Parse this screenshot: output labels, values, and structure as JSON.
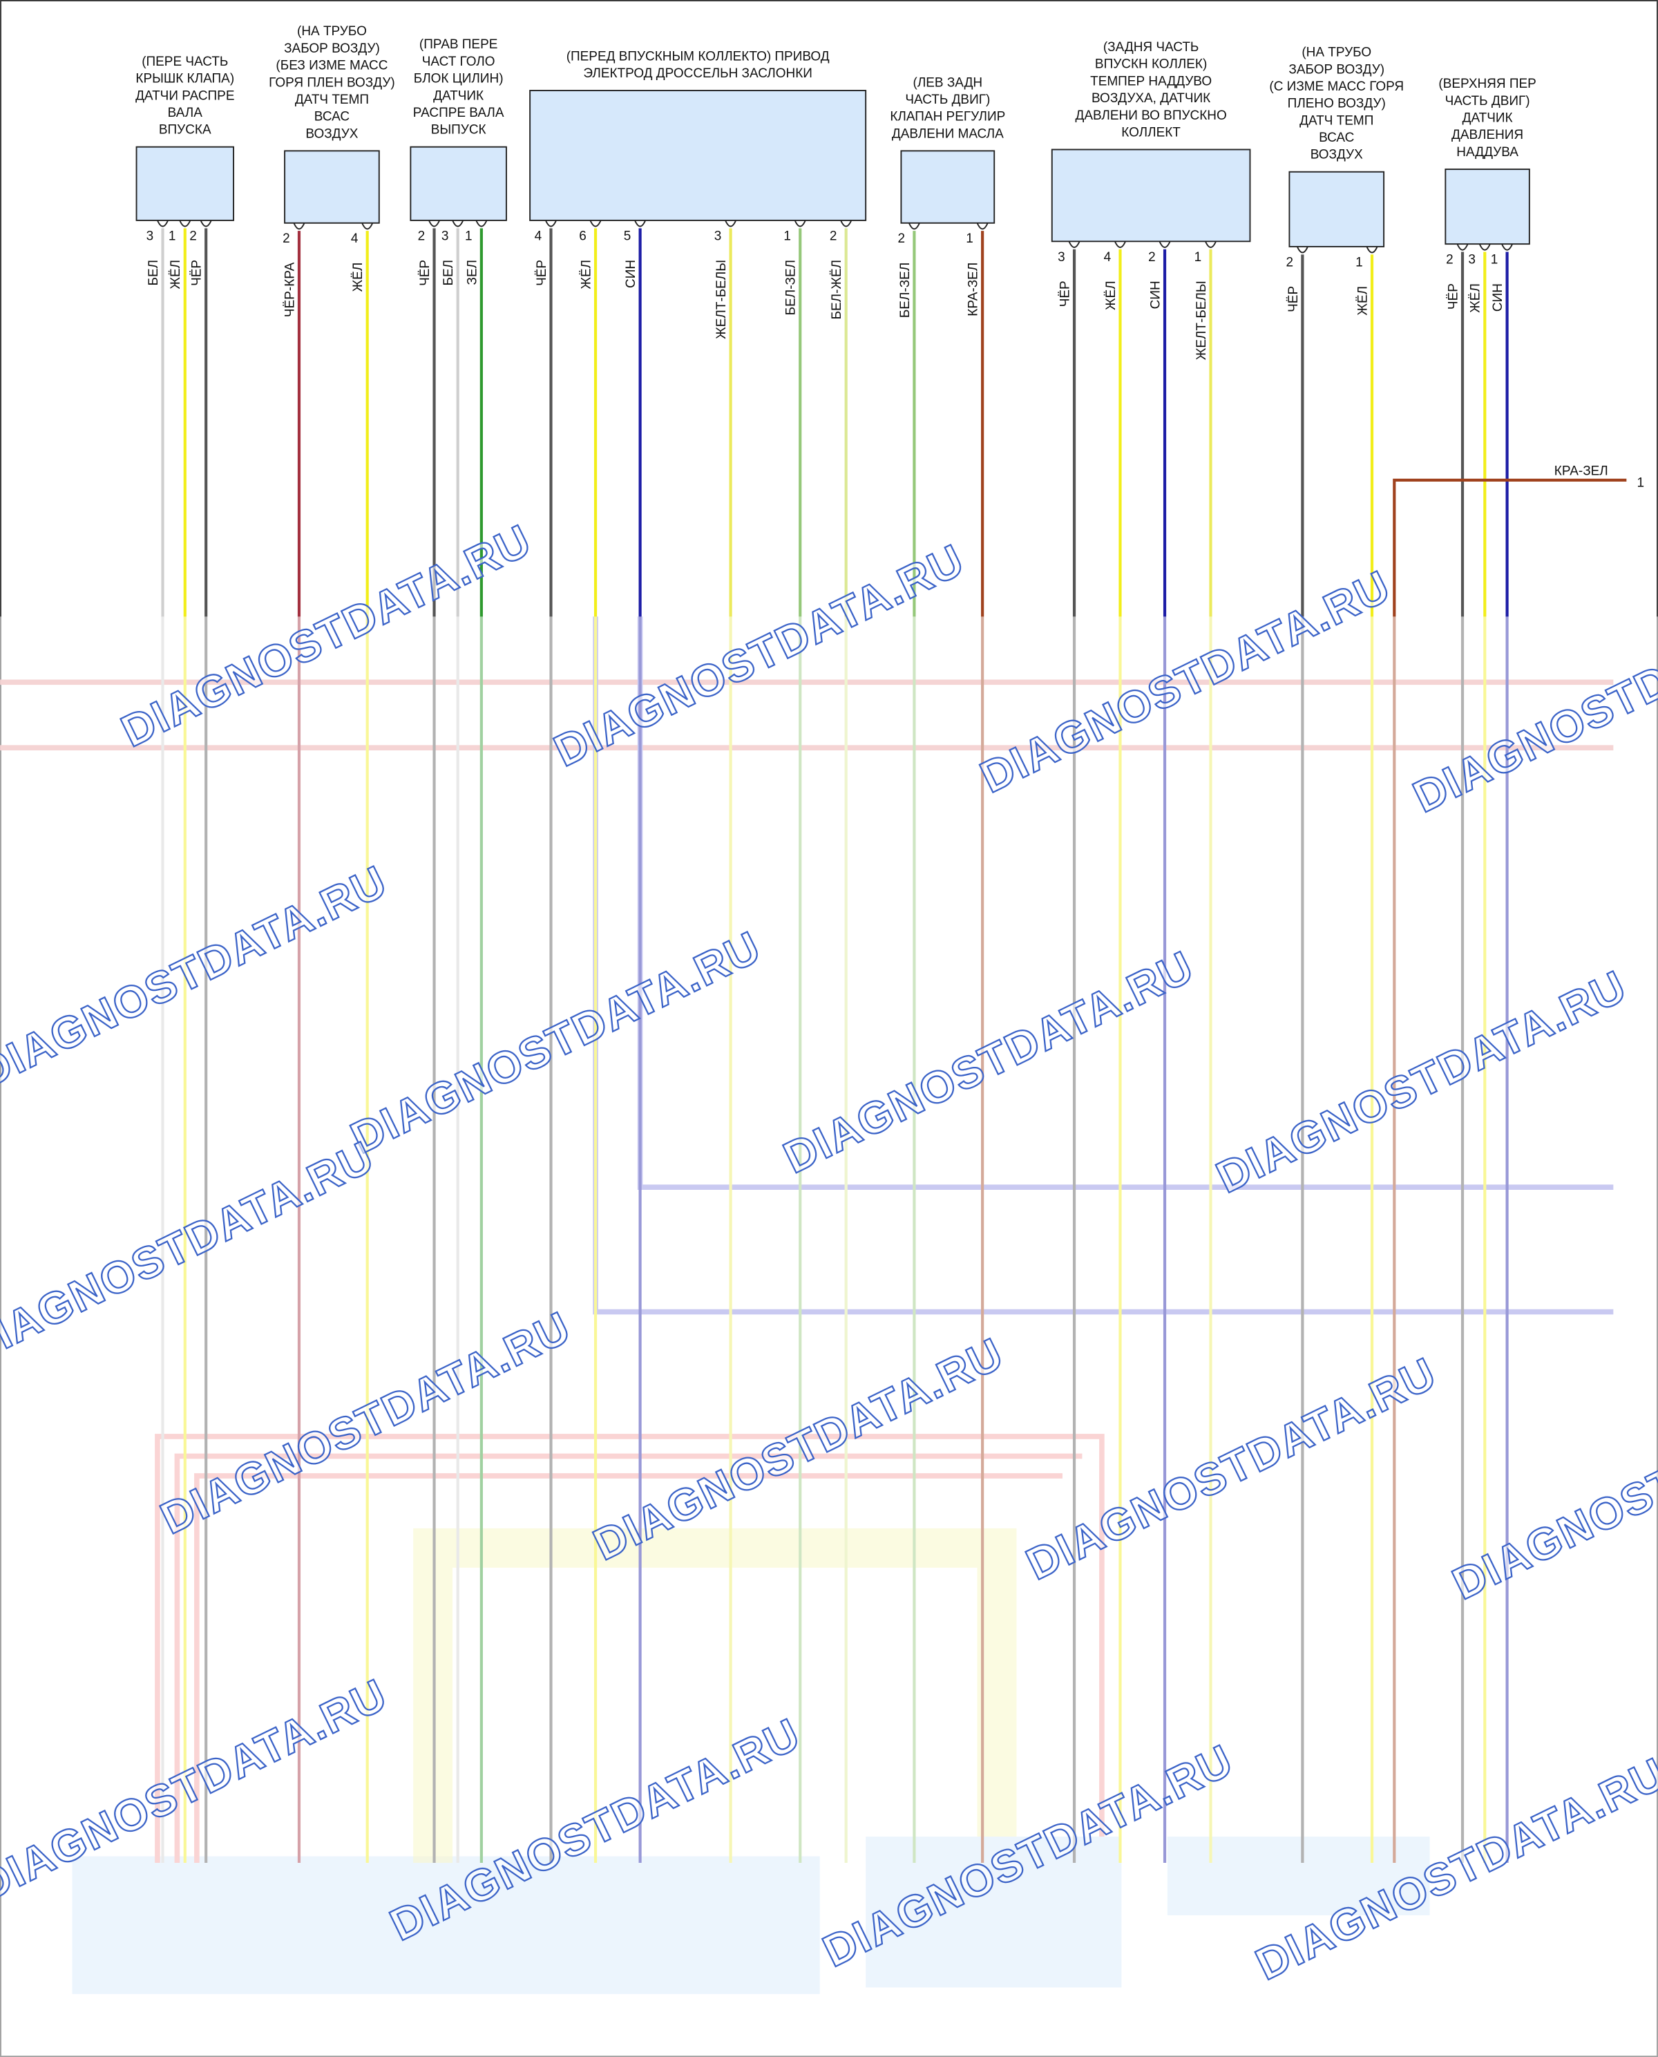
{
  "watermark": "DIAGNOSTDATA.RU",
  "components": [
    {
      "label": [
        "(ПЕРЕ ЧАСТЬ",
        "КРЫШК КЛАПА)",
        "ДАТЧИ РАСПРЕ",
        "ВАЛА",
        "ВПУСКА"
      ],
      "pins": [
        {
          "number": "3",
          "wire": "БЕЛ",
          "color": "#cfcfcf"
        },
        {
          "number": "1",
          "wire": "ЖЁЛ",
          "color": "#f2ee1a"
        },
        {
          "number": "2",
          "wire": "ЧЁР",
          "color": "#555555"
        }
      ]
    },
    {
      "label": [
        "(НА ТРУБО",
        "ЗАБОР ВОЗДУ)",
        "(БЕЗ ИЗМЕ МАСС",
        "ГОРЯ ПЛЕН ВОЗДУ)",
        "ДАТЧ ТЕМП",
        "ВСАС",
        "ВОЗДУХ"
      ],
      "pins": [
        {
          "number": "2",
          "wire": "ЧЁР-КРА",
          "color": "#a3303f"
        },
        {
          "number": "4",
          "wire": "ЖЁЛ",
          "color": "#f2ee1a"
        }
      ]
    },
    {
      "label": [
        "(ПРАВ ПЕРЕ",
        "ЧАСТ ГОЛО",
        "БЛОК ЦИЛИН)",
        "ДАТЧИК",
        "РАСПРЕ ВАЛА",
        "ВЫПУСК"
      ],
      "pins": [
        {
          "number": "2",
          "wire": "ЧЁР",
          "color": "#555555"
        },
        {
          "number": "3",
          "wire": "БЕЛ",
          "color": "#cfcfcf"
        },
        {
          "number": "1",
          "wire": "ЗЕЛ",
          "color": "#2e9a2e"
        }
      ]
    },
    {
      "label": [
        "(ПЕРЕД ВПУСКНЫМ КОЛЛЕКТО) ПРИВОД",
        "ЭЛЕКТРОД ДРОССЕЛЬН ЗАСЛОНКИ"
      ],
      "pins": [
        {
          "number": "4",
          "wire": "ЧЁР",
          "color": "#555555"
        },
        {
          "number": "6",
          "wire": "ЖЁЛ",
          "color": "#f2ee1a"
        },
        {
          "number": "5",
          "wire": "СИН",
          "color": "#1c1ca6"
        },
        {
          "number": "3",
          "wire": "ЖЕЛТ-БЕЛЫ",
          "color": "#ecea5c"
        },
        {
          "number": "1",
          "wire": "БЕЛ-ЗЕЛ",
          "color": "#95c87a"
        },
        {
          "number": "2",
          "wire": "БЕЛ-ЖЁЛ",
          "color": "#dbe894"
        }
      ]
    },
    {
      "label": [
        "(ЛЕВ ЗАДН",
        "ЧАСТЬ ДВИГ)",
        "КЛАПАН РЕГУЛИР",
        "ДАВЛЕНИ МАСЛА"
      ],
      "pins": [
        {
          "number": "2",
          "wire": "БЕЛ-ЗЕЛ",
          "color": "#95c87a"
        },
        {
          "number": "1",
          "wire": "КРА-ЗЕЛ",
          "color": "#a0421e"
        }
      ]
    },
    {
      "label": [
        "(ЗАДНЯ ЧАСТЬ",
        "ВПУСКН КОЛЛЕК)",
        "ТЕМПЕР НАДДУВО",
        "ВОЗДУХА, ДАТЧИК",
        "ДАВЛЕНИ ВО ВПУСКНО",
        "КОЛЛЕКТ"
      ],
      "pins": [
        {
          "number": "3",
          "wire": "ЧЁР",
          "color": "#555555"
        },
        {
          "number": "4",
          "wire": "ЖЁЛ",
          "color": "#f2ee1a"
        },
        {
          "number": "2",
          "wire": "СИН",
          "color": "#1c1ca6"
        },
        {
          "number": "1",
          "wire": "ЖЕЛТ-БЕЛЫ",
          "color": "#ecea5c"
        }
      ]
    },
    {
      "label": [
        "(НА ТРУБО",
        "ЗАБОР ВОЗДУ)",
        "(С ИЗМЕ МАСС ГОРЯ",
        "ПЛЕНО ВОЗДУ)",
        "ДАТЧ ТЕМП",
        "ВСАС",
        "ВОЗДУХ"
      ],
      "pins": [
        {
          "number": "2",
          "wire": "ЧЁР",
          "color": "#555555"
        },
        {
          "number": "1",
          "wire": "ЖЁЛ",
          "color": "#f2ee1a"
        }
      ]
    },
    {
      "label": [
        "(ВЕРХНЯЯ ПЕР",
        "ЧАСТЬ ДВИГ)",
        "ДАТЧИК",
        "ДАВЛЕНИЯ",
        "НАДДУВА"
      ],
      "pins": [
        {
          "number": "2",
          "wire": "ЧЁР",
          "color": "#555555"
        },
        {
          "number": "3",
          "wire": "ЖЁЛ",
          "color": "#f2ee1a"
        },
        {
          "number": "1",
          "wire": "СИН",
          "color": "#1c1ca6"
        }
      ]
    }
  ],
  "extra_wire": {
    "label": "КРА-ЗЕЛ",
    "pin": "1",
    "color": "#a0421e"
  }
}
